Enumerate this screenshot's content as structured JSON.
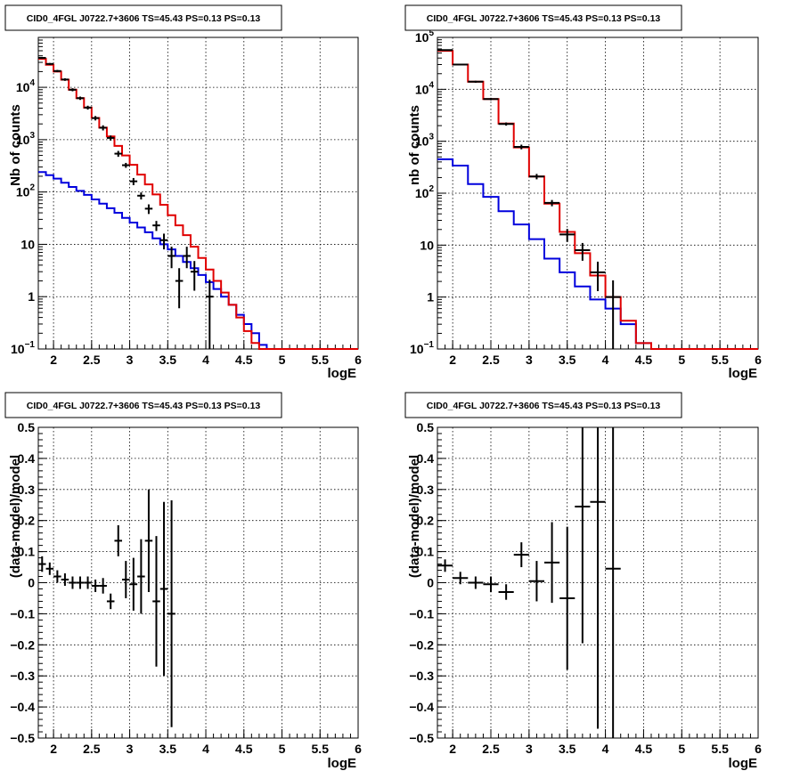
{
  "colors": {
    "data": "#000000",
    "total_model": "#e00000",
    "component_model": "#0000dd",
    "grid": "#000000"
  },
  "chart_data": [
    {
      "type": "line",
      "title": "CID0_4FGL J0722.7+3606 TS=45.43 PS=0.13 PS=0.13",
      "xlabel": "logE",
      "ylabel": "Nb of counts",
      "yscale": "log",
      "xlim": [
        1.8,
        6.0
      ],
      "ylim": [
        0.1,
        90000
      ],
      "grid": true,
      "xticks": [
        "2",
        "2.5",
        "3",
        "3.5",
        "4",
        "4.5",
        "5",
        "5.5",
        "6"
      ],
      "yticks": [
        {
          "v": 0.1,
          "label": "10",
          "sup": "−1"
        },
        {
          "v": 1,
          "label": "1",
          "sup": ""
        },
        {
          "v": 10,
          "label": "10",
          "sup": ""
        },
        {
          "v": 100,
          "label": "10",
          "sup": "2"
        },
        {
          "v": 1000,
          "label": "10",
          "sup": "3"
        },
        {
          "v": 10000,
          "label": "10",
          "sup": "4"
        }
      ],
      "bin_edges": [
        1.8,
        1.9,
        2.0,
        2.1,
        2.2,
        2.3,
        2.4,
        2.5,
        2.6,
        2.7,
        2.8,
        2.9,
        3.0,
        3.1,
        3.2,
        3.3,
        3.4,
        3.5,
        3.6,
        3.7,
        3.8,
        3.9,
        4.0,
        4.1,
        4.2,
        4.3,
        4.4,
        4.5,
        4.6,
        4.7,
        4.8,
        4.9,
        5.0,
        5.1,
        5.2,
        5.3,
        5.4,
        5.5,
        5.6,
        5.7,
        5.8,
        5.9,
        6.0
      ],
      "series": [
        {
          "key": "total",
          "values": [
            35000,
            27000,
            20000,
            14000,
            9000,
            6200,
            4100,
            2600,
            1700,
            1150,
            760,
            500,
            330,
            215,
            140,
            90,
            57,
            36,
            23,
            15,
            9,
            5.5,
            3.3,
            2,
            1.2,
            0.7,
            0.4,
            0.22,
            0.13,
            0.1,
            0.1,
            0.1,
            0.1,
            0.1,
            0.1,
            0.1,
            0.1,
            0.1,
            0.1,
            0.1,
            0.1,
            0.1
          ]
        },
        {
          "key": "component",
          "values": [
            240,
            210,
            180,
            150,
            125,
            105,
            88,
            72,
            60,
            49,
            40,
            32,
            26,
            21,
            17,
            13,
            10,
            8,
            6,
            4.6,
            3.5,
            2.6,
            1.9,
            1.4,
            1.0,
            0.7,
            0.45,
            0.3,
            0.2,
            0.12,
            0.1,
            0.1,
            0.1,
            0.1,
            0.1,
            0.1,
            0.1,
            0.1,
            0.1,
            0.1,
            0.1,
            0.1
          ]
        }
      ],
      "points": [
        {
          "x": 1.85,
          "y": 36500,
          "lo": 35000,
          "hi": 38000
        },
        {
          "x": 1.95,
          "y": 28000,
          "lo": 26800,
          "hi": 29200
        },
        {
          "x": 2.05,
          "y": 20500,
          "lo": 19500,
          "hi": 21500
        },
        {
          "x": 2.15,
          "y": 14100,
          "lo": 13300,
          "hi": 14900
        },
        {
          "x": 2.25,
          "y": 9000,
          "lo": 8400,
          "hi": 9600
        },
        {
          "x": 2.35,
          "y": 6200,
          "lo": 5750,
          "hi": 6650
        },
        {
          "x": 2.45,
          "y": 4100,
          "lo": 3750,
          "hi": 4450
        },
        {
          "x": 2.55,
          "y": 2580,
          "lo": 2330,
          "hi": 2830
        },
        {
          "x": 2.65,
          "y": 1690,
          "lo": 1500,
          "hi": 1880
        },
        {
          "x": 2.75,
          "y": 1080,
          "lo": 960,
          "hi": 1200
        },
        {
          "x": 2.85,
          "y": 540,
          "lo": 470,
          "hi": 610
        },
        {
          "x": 2.95,
          "y": 325,
          "lo": 290,
          "hi": 360
        },
        {
          "x": 3.05,
          "y": 160,
          "lo": 135,
          "hi": 185
        },
        {
          "x": 3.15,
          "y": 85,
          "lo": 72,
          "hi": 98
        },
        {
          "x": 3.25,
          "y": 48,
          "lo": 38,
          "hi": 58
        },
        {
          "x": 3.35,
          "y": 23,
          "lo": 18,
          "hi": 28
        },
        {
          "x": 3.45,
          "y": 12,
          "lo": 8,
          "hi": 16
        },
        {
          "x": 3.55,
          "y": 6,
          "lo": 3.5,
          "hi": 9
        },
        {
          "x": 3.65,
          "y": 2,
          "lo": 0.6,
          "hi": 3.5
        },
        {
          "x": 3.75,
          "y": 6,
          "lo": 3.5,
          "hi": 9
        },
        {
          "x": 3.85,
          "y": 3,
          "lo": 1.3,
          "hi": 4.8
        },
        {
          "x": 4.05,
          "y": 1,
          "lo": 0.1,
          "hi": 2.1
        }
      ]
    },
    {
      "type": "line",
      "title": "CID0_4FGL J0722.7+3606 TS=45.43 PS=0.13 PS=0.13",
      "xlabel": "logE",
      "ylabel": "nb of counts",
      "yscale": "log",
      "xlim": [
        1.8,
        6.0
      ],
      "ylim": [
        0.1,
        100000
      ],
      "grid": true,
      "xticks": [
        "2",
        "2.5",
        "3",
        "3.5",
        "4",
        "4.5",
        "5",
        "5.5",
        "6"
      ],
      "yticks": [
        {
          "v": 0.1,
          "label": "10",
          "sup": "−1"
        },
        {
          "v": 1,
          "label": "1",
          "sup": ""
        },
        {
          "v": 10,
          "label": "10",
          "sup": ""
        },
        {
          "v": 100,
          "label": "10",
          "sup": "2"
        },
        {
          "v": 1000,
          "label": "10",
          "sup": "3"
        },
        {
          "v": 10000,
          "label": "10",
          "sup": "4"
        },
        {
          "v": 100000,
          "label": "10",
          "sup": "5"
        }
      ],
      "bin_edges": [
        1.8,
        2.0,
        2.2,
        2.4,
        2.6,
        2.8,
        3.0,
        3.2,
        3.4,
        3.6,
        3.8,
        4.0,
        4.2,
        4.4,
        4.6,
        4.8,
        5.0,
        5.2,
        5.4,
        5.6,
        5.8,
        6.0
      ],
      "series": [
        {
          "key": "total",
          "values": [
            55000,
            30000,
            14000,
            6500,
            2200,
            760,
            210,
            63,
            18,
            7,
            2.6,
            1,
            0.35,
            0.13,
            0.1,
            0.1,
            0.1,
            0.1,
            0.1,
            0.1,
            0.1
          ]
        },
        {
          "key": "component",
          "values": [
            450,
            340,
            150,
            85,
            45,
            25,
            13,
            5.5,
            3,
            1.6,
            0.9,
            0.6,
            0.3,
            0.13,
            0.1,
            0.1,
            0.1,
            0.1,
            0.1,
            0.1,
            0.1
          ]
        }
      ],
      "points": [
        {
          "x": 1.9,
          "y": 57000,
          "lo": 55500,
          "hi": 58500
        },
        {
          "x": 2.1,
          "y": 30000,
          "lo": 29000,
          "hi": 31000
        },
        {
          "x": 2.3,
          "y": 14000,
          "lo": 13400,
          "hi": 14600
        },
        {
          "x": 2.5,
          "y": 6500,
          "lo": 6150,
          "hi": 6850
        },
        {
          "x": 2.7,
          "y": 2150,
          "lo": 2000,
          "hi": 2300
        },
        {
          "x": 2.9,
          "y": 780,
          "lo": 700,
          "hi": 860
        },
        {
          "x": 3.1,
          "y": 210,
          "lo": 185,
          "hi": 235
        },
        {
          "x": 3.3,
          "y": 65,
          "lo": 56,
          "hi": 74
        },
        {
          "x": 3.5,
          "y": 16,
          "lo": 11.5,
          "hi": 20.5
        },
        {
          "x": 3.7,
          "y": 8,
          "lo": 5,
          "hi": 11
        },
        {
          "x": 3.9,
          "y": 3,
          "lo": 1.3,
          "hi": 4.8
        },
        {
          "x": 4.1,
          "y": 1,
          "lo": 0.1,
          "hi": 2.1
        }
      ]
    },
    {
      "type": "scatter",
      "title": "CID0_4FGL J0722.7+3606 TS=45.43 PS=0.13 PS=0.13",
      "xlabel": "logE",
      "ylabel": "(data-model)/model",
      "xlim": [
        1.8,
        6.0
      ],
      "ylim": [
        -0.5,
        0.5
      ],
      "grid": true,
      "xticks": [
        "2",
        "2.5",
        "3",
        "3.5",
        "4",
        "4.5",
        "5",
        "5.5",
        "6"
      ],
      "yticks": [
        "−0.5",
        "−0.4",
        "−0.3",
        "−0.2",
        "−0.1",
        "0",
        "0.1",
        "0.2",
        "0.3",
        "0.4",
        "0.5"
      ],
      "halfwidth": 0.05,
      "points": [
        {
          "x": 1.85,
          "y": 0.06,
          "err": 0.025
        },
        {
          "x": 1.95,
          "y": 0.045,
          "err": 0.02
        },
        {
          "x": 2.05,
          "y": 0.02,
          "err": 0.02
        },
        {
          "x": 2.15,
          "y": 0.01,
          "err": 0.02
        },
        {
          "x": 2.25,
          "y": 0.0,
          "err": 0.02
        },
        {
          "x": 2.35,
          "y": 0.0,
          "err": 0.02
        },
        {
          "x": 2.45,
          "y": 0.0,
          "err": 0.02
        },
        {
          "x": 2.55,
          "y": -0.01,
          "err": 0.02
        },
        {
          "x": 2.65,
          "y": -0.01,
          "err": 0.025
        },
        {
          "x": 2.75,
          "y": -0.06,
          "err": 0.025
        },
        {
          "x": 2.85,
          "y": 0.135,
          "err": 0.05
        },
        {
          "x": 2.95,
          "y": 0.01,
          "err": 0.06
        },
        {
          "x": 3.05,
          "y": -0.005,
          "err": 0.085
        },
        {
          "x": 3.15,
          "y": 0.02,
          "err": 0.12
        },
        {
          "x": 3.25,
          "y": 0.135,
          "err": 0.165
        },
        {
          "x": 3.35,
          "y": -0.06,
          "err": 0.21
        },
        {
          "x": 3.45,
          "y": -0.02,
          "err": 0.28
        },
        {
          "x": 3.55,
          "y": -0.1,
          "err": 0.365
        }
      ]
    },
    {
      "type": "scatter",
      "title": "CID0_4FGL J0722.7+3606 TS=45.43 PS=0.13 PS=0.13",
      "xlabel": "logE",
      "ylabel": "(data-model)/model",
      "xlim": [
        1.8,
        6.0
      ],
      "ylim": [
        -0.5,
        0.5
      ],
      "grid": true,
      "xticks": [
        "2",
        "2.5",
        "3",
        "3.5",
        "4",
        "4.5",
        "5",
        "5.5",
        "6"
      ],
      "yticks": [
        "−0.5",
        "−0.4",
        "−0.3",
        "−0.2",
        "−0.1",
        "0",
        "0.1",
        "0.2",
        "0.3",
        "0.4",
        "0.5"
      ],
      "halfwidth": 0.1,
      "points": [
        {
          "x": 1.9,
          "y": 0.055,
          "err": 0.02
        },
        {
          "x": 2.1,
          "y": 0.015,
          "err": 0.02
        },
        {
          "x": 2.3,
          "y": 0.0,
          "err": 0.02
        },
        {
          "x": 2.5,
          "y": -0.005,
          "err": 0.025
        },
        {
          "x": 2.7,
          "y": -0.03,
          "err": 0.025
        },
        {
          "x": 2.9,
          "y": 0.09,
          "err": 0.04
        },
        {
          "x": 3.1,
          "y": 0.005,
          "err": 0.065
        },
        {
          "x": 3.3,
          "y": 0.065,
          "err": 0.13
        },
        {
          "x": 3.5,
          "y": -0.05,
          "err": 0.23
        },
        {
          "x": 3.7,
          "y": 0.245,
          "err": 0.44
        },
        {
          "x": 3.9,
          "y": 0.26,
          "err": 0.73
        },
        {
          "x": 4.1,
          "y": 0.045,
          "err": 1.0
        }
      ]
    }
  ]
}
